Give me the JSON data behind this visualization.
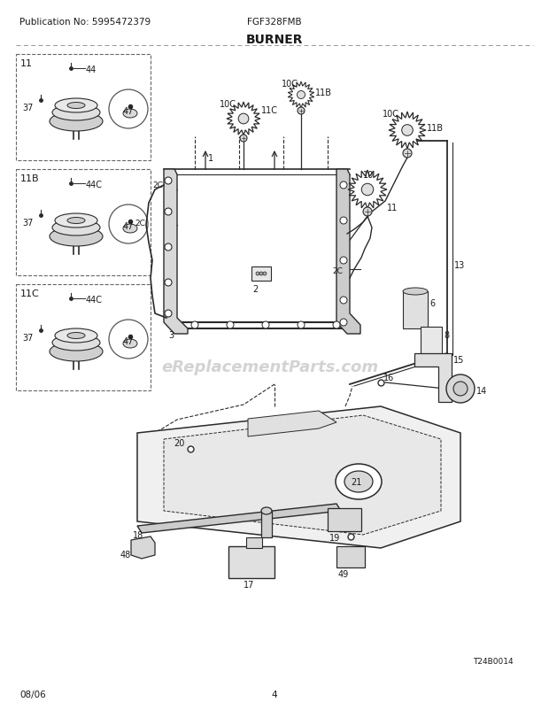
{
  "title": "BURNER",
  "pub_no": "Publication No: 5995472379",
  "model": "FGF328FMB",
  "date": "08/06",
  "page": "4",
  "watermark": "eReplacementParts.com",
  "ref_code": "T24B0014",
  "bg_color": "#ffffff",
  "text_color": "#1a1a1a",
  "line_color": "#2a2a2a",
  "watermark_color": "#b0b0b0",
  "fig_width": 6.2,
  "fig_height": 8.03,
  "header_fontsize": 7.5,
  "title_fontsize": 10,
  "footer_fontsize": 7.5,
  "label_fontsize": 7,
  "watermark_fontsize": 13
}
